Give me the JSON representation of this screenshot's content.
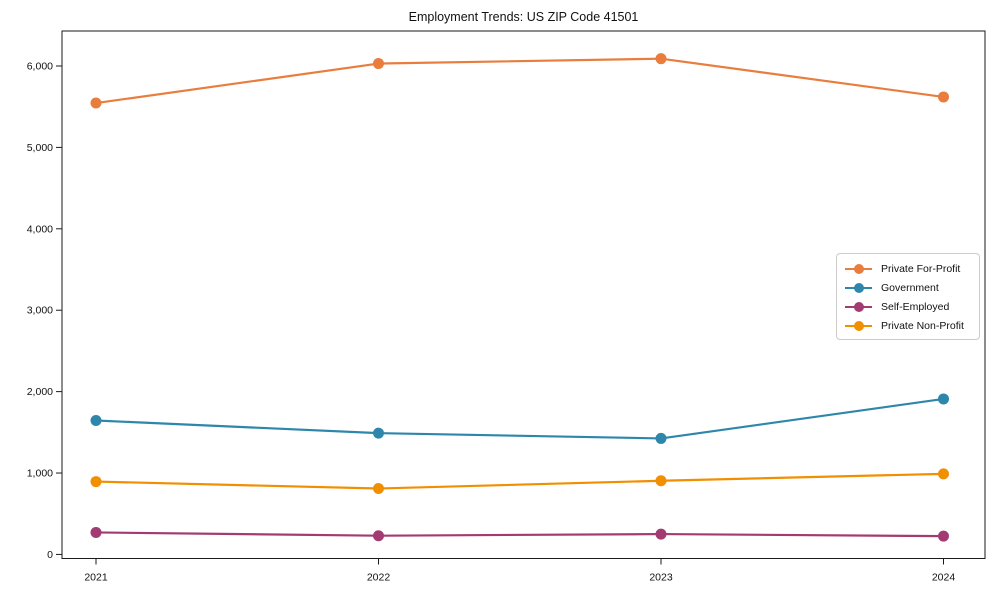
{
  "page": {
    "title": "Employment Trends: US ZIP Code 41501"
  },
  "chart_data": {
    "type": "line",
    "title": "Employment Trends: US ZIP Code 41501",
    "xlabel": "",
    "ylabel": "",
    "categories": [
      "2021",
      "2022",
      "2023",
      "2024"
    ],
    "series": [
      {
        "name": "Private For-Profit",
        "color": "#E87D3E",
        "values": [
          5545,
          6030,
          6090,
          5620
        ]
      },
      {
        "name": "Government",
        "color": "#2E86AB",
        "values": [
          1645,
          1490,
          1425,
          1910
        ]
      },
      {
        "name": "Self-Employed",
        "color": "#A23B72",
        "values": [
          270,
          230,
          250,
          225
        ]
      },
      {
        "name": "Private Non-Profit",
        "color": "#F18F01",
        "values": [
          895,
          810,
          905,
          990
        ]
      }
    ],
    "y_ticks": [
      0,
      1000,
      2000,
      3000,
      4000,
      5000,
      6000
    ],
    "y_tick_labels": [
      "0",
      "1,000",
      "2,000",
      "3,000",
      "4,000",
      "5,000",
      "6,000"
    ],
    "ylim": [
      -50,
      6430
    ],
    "grid": false,
    "legend_position": "center-right",
    "marker": "circle",
    "axis_color": "#1a1a1a"
  }
}
